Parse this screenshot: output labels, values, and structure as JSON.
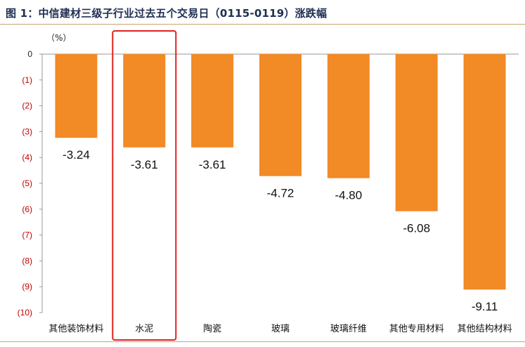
{
  "title": "图 1：中信建材三级子行业过去五个交易日（0115-0119）涨跌幅",
  "chart_data": {
    "type": "bar",
    "title": "图 1：中信建材三级子行业过去五个交易日（0115-0119）涨跌幅",
    "unit_label": "（%）",
    "categories": [
      "其他装饰材料",
      "水泥",
      "陶瓷",
      "玻璃",
      "玻璃纤维",
      "其他专用材料",
      "其他结构材料"
    ],
    "values": [
      -3.24,
      -3.61,
      -3.61,
      -4.72,
      -4.8,
      -6.08,
      -9.11
    ],
    "data_labels": [
      "-3.24",
      "-3.61",
      "-3.61",
      "-4.72",
      "-4.80",
      "-6.08",
      "-9.11"
    ],
    "yticks": [
      0,
      -1,
      -2,
      -3,
      -4,
      -5,
      -6,
      -7,
      -8,
      -9,
      -10
    ],
    "ytick_labels": [
      "0",
      "(1)",
      "(2)",
      "(3)",
      "(4)",
      "(5)",
      "(6)",
      "(7)",
      "(8)",
      "(9)",
      "(10)"
    ],
    "ylim": [
      -10,
      0
    ],
    "highlighted_category": "水泥",
    "grid": false,
    "colors": {
      "bar": "#f28a26",
      "highlight_box": "#e0211f",
      "negative_tick": "#c00000",
      "zero_tick": "#222222",
      "title": "#1f2f52",
      "rule": "#c8a46e"
    }
  }
}
